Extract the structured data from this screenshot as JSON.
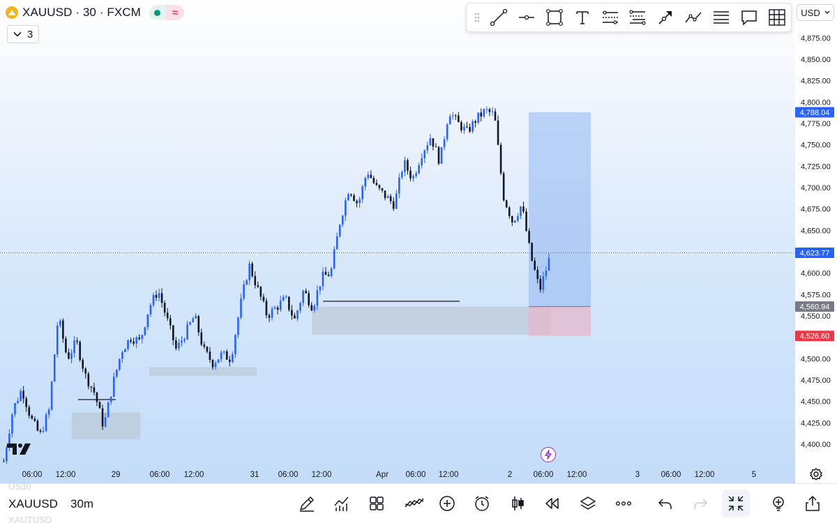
{
  "symbol_header": {
    "title": "XAUUSD · 30 · FXCM",
    "collapse_count": "3"
  },
  "currency": "USD",
  "drawing_tools": [
    {
      "name": "trend-line-icon"
    },
    {
      "name": "horizontal-line-icon"
    },
    {
      "name": "rectangle-icon"
    },
    {
      "name": "text-icon"
    },
    {
      "name": "parallel-channel-icon"
    },
    {
      "name": "fib-retracement-icon"
    },
    {
      "name": "arrow-marker-icon"
    },
    {
      "name": "path-icon"
    },
    {
      "name": "horizontal-lines-icon"
    },
    {
      "name": "callout-icon"
    },
    {
      "name": "grid-icon"
    }
  ],
  "price_axis": {
    "ticks": [
      "4,875.00",
      "4,850.00",
      "4,825.00",
      "4,800.00",
      "4,775.00",
      "4,750.00",
      "4,725.00",
      "4,700.00",
      "4,675.00",
      "4,650.00",
      "4,625.00",
      "4,600.00",
      "4,575.00",
      "4,550.00",
      "4,525.00",
      "4,500.00",
      "4,475.00",
      "4,450.00",
      "4,425.00",
      "4,400.00"
    ],
    "labels": [
      {
        "value": 4788.04,
        "text": "4,788.04",
        "color": "#2962ff"
      },
      {
        "value": 4623.77,
        "text": "4,623.77",
        "color": "#2962ff"
      },
      {
        "value": 4560.94,
        "text": "4,560.94",
        "color": "#787b86"
      },
      {
        "value": 4526.6,
        "text": "4,526.60",
        "color": "#f23645"
      }
    ]
  },
  "time_axis": [
    "06:00",
    "12:00",
    "29",
    "06:00",
    "12:00",
    "31",
    "06:00",
    "12:00",
    "Apr",
    "06:00",
    "12:00",
    "2",
    "06:00",
    "12:00",
    "3",
    "06:00",
    "12:00",
    "5"
  ],
  "chart_data": {
    "type": "candlestick",
    "symbol": "XAUUSD",
    "interval": "30",
    "source": "FXCM",
    "ylim": [
      4380,
      4895
    ],
    "last_price": 4623.77,
    "up_color": "#2962ff",
    "down_color": "#131722",
    "price_path": [
      4380,
      4440,
      4465,
      4430,
      4410,
      4440,
      4550,
      4500,
      4520,
      4480,
      4460,
      4420,
      4470,
      4510,
      4525,
      4520,
      4560,
      4580,
      4545,
      4510,
      4530,
      4550,
      4510,
      4495,
      4505,
      4500,
      4560,
      4610,
      4580,
      4550,
      4560,
      4570,
      4545,
      4580,
      4560,
      4595,
      4600,
      4660,
      4700,
      4680,
      4720,
      4700,
      4690,
      4680,
      4730,
      4710,
      4740,
      4760,
      4730,
      4790,
      4775,
      4765,
      4780,
      4790,
      4785,
      4690,
      4660,
      4680,
      4620,
      4580,
      4615
    ],
    "demand_zones": [
      {
        "from": "06:00",
        "top": 4437,
        "bottom": 4406
      },
      {
        "from": "06:00",
        "top": 4490,
        "bottom": 4480
      },
      {
        "from": "12:00",
        "top": 4561,
        "bottom": 4528
      }
    ],
    "long_position": {
      "target": 4788.04,
      "entry": 4560.94,
      "stop": 4526.6
    }
  },
  "bottom_bar": {
    "symbol": "XAUUSD",
    "interval": "30m",
    "ghost_above": "US30",
    "ghost_below": "XAUTUSD",
    "buttons": [
      {
        "name": "draw-tool-icon"
      },
      {
        "name": "indicators-icon"
      },
      {
        "name": "templates-icon"
      },
      {
        "name": "compare-icon"
      },
      {
        "name": "add-icon"
      },
      {
        "name": "alert-clock-icon"
      },
      {
        "name": "candle-type-icon"
      },
      {
        "name": "replay-icon"
      },
      {
        "name": "layers-icon"
      },
      {
        "name": "more-icon"
      },
      {
        "name": "undo-icon"
      },
      {
        "name": "redo-icon"
      },
      {
        "name": "exit-fullscreen-icon"
      },
      {
        "name": "idea-icon"
      },
      {
        "name": "share-icon"
      }
    ]
  }
}
